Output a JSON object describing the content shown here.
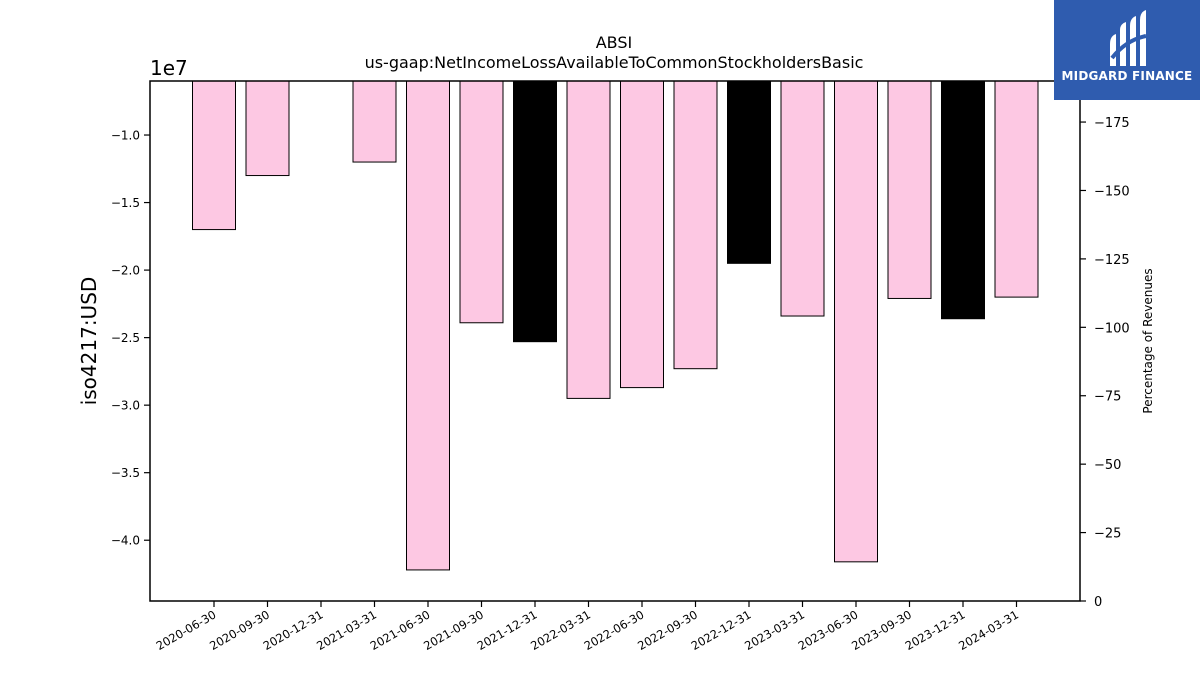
{
  "chart_data": {
    "type": "bar",
    "title": "ABSI",
    "subtitle": "us-gaap:NetIncomeLossAvailableToCommonStockholdersBasic",
    "ylabel": "iso4217:USD",
    "y_offset_label": "1e7",
    "y2label": "Percentage of Revenues",
    "categories": [
      "2020-06-30",
      "2020-09-30",
      "2020-12-31",
      "2021-03-31",
      "2021-06-30",
      "2021-09-30",
      "2021-12-31",
      "2022-03-31",
      "2022-06-30",
      "2022-09-30",
      "2022-12-31",
      "2023-03-31",
      "2023-06-30",
      "2023-09-30",
      "2023-12-31",
      "2024-03-31"
    ],
    "values": [
      -17000000,
      -13000000,
      null,
      -12000000,
      -42200000,
      -23900000,
      -25300000,
      -29500000,
      -28700000,
      -27300000,
      -19500000,
      -23400000,
      -41600000,
      -22100000,
      -23600000,
      -22000000
    ],
    "bar_colors": [
      "#fdc8e3",
      "#fdc8e3",
      null,
      "#fdc8e3",
      "#fdc8e3",
      "#fdc8e3",
      "#000000",
      "#fdc8e3",
      "#fdc8e3",
      "#fdc8e3",
      "#000000",
      "#fdc8e3",
      "#fdc8e3",
      "#fdc8e3",
      "#000000",
      "#fdc8e3"
    ],
    "ylim": [
      -44500000,
      -6000000
    ],
    "yticks": [
      -40000000,
      -35000000,
      -30000000,
      -25000000,
      -20000000,
      -15000000,
      -10000000
    ],
    "ytick_labels": [
      "−4.0",
      "−3.5",
      "−3.0",
      "−2.5",
      "−2.0",
      "−1.5",
      "−1.0"
    ],
    "y2lim": [
      0,
      -190
    ],
    "y2ticks": [
      0,
      -25,
      -50,
      -75,
      -100,
      -125,
      -150,
      -175
    ],
    "y2tick_labels": [
      "0",
      "−25",
      "−50",
      "−75",
      "−100",
      "−125",
      "−150",
      "−175"
    ],
    "grid": false
  },
  "logo": {
    "name": "MIDGARD FINANCE",
    "bg_color": "#2f5caf"
  }
}
